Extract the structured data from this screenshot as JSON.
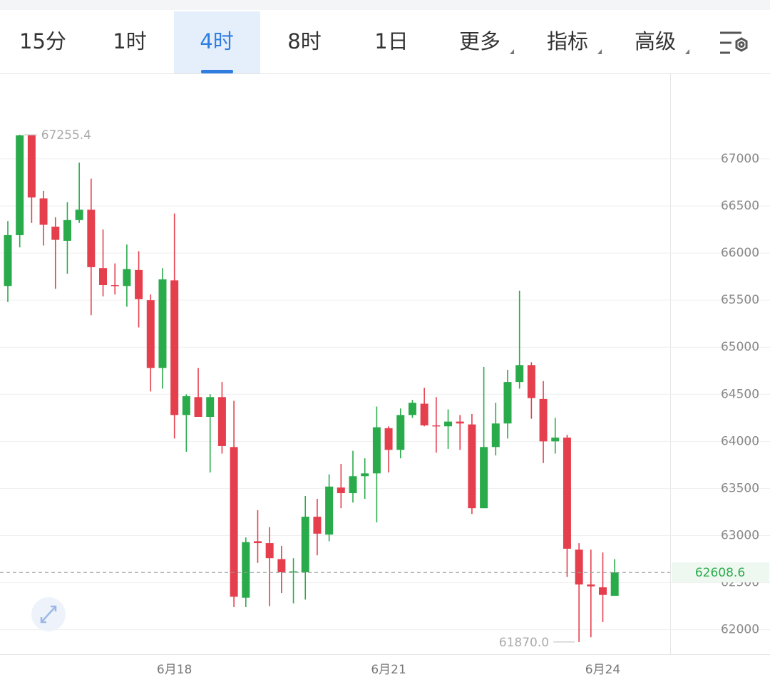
{
  "toolbar": {
    "tabs": [
      "15分",
      "1时",
      "4时",
      "8时",
      "1日",
      "更多",
      "指标",
      "高级"
    ],
    "active": 2,
    "menu_tabs": [
      5,
      6,
      7
    ]
  },
  "chart_data": {
    "type": "candlestick",
    "categories": [
      null,
      null,
      null,
      null,
      null,
      null,
      null,
      null,
      null,
      null,
      null,
      null,
      null,
      null,
      "6月18",
      null,
      null,
      null,
      null,
      null,
      null,
      null,
      null,
      null,
      null,
      null,
      null,
      null,
      null,
      null,
      null,
      null,
      "6月21",
      null,
      null,
      null,
      null,
      null,
      null,
      null,
      null,
      null,
      null,
      null,
      null,
      null,
      null,
      null,
      null,
      null,
      "6月24",
      null
    ],
    "open": [
      65650,
      66190,
      67250,
      66580,
      66280,
      66130,
      66350,
      66460,
      65840,
      65660,
      65650,
      65820,
      65500,
      64780,
      65710,
      64280,
      64470,
      64260,
      64470,
      63940,
      62340,
      62940,
      62920,
      62750,
      62610,
      62610,
      63200,
      63010,
      63510,
      63450,
      63630,
      63660,
      64140,
      63910,
      64280,
      64400,
      64170,
      64160,
      64210,
      64180,
      63290,
      63940,
      64190,
      64630,
      64810,
      64450,
      64000,
      64040,
      62850,
      62480,
      62450,
      62360
    ],
    "high": [
      66340,
      67255.4,
      67250,
      66660,
      66380,
      66540,
      66960,
      66790,
      66250,
      65890,
      66090,
      66020,
      65560,
      65840,
      66420,
      64500,
      64780,
      64500,
      64630,
      64430,
      62980,
      63270,
      63090,
      62890,
      62760,
      63420,
      63390,
      63650,
      63760,
      63900,
      63820,
      64370,
      64160,
      64350,
      64440,
      64570,
      64470,
      64340,
      64280,
      64290,
      64790,
      64410,
      64760,
      65600,
      64840,
      64640,
      64250,
      64070,
      62920,
      62850,
      62820,
      62750
    ],
    "low": [
      65480,
      66060,
      66320,
      66080,
      65620,
      65780,
      66320,
      65340,
      65540,
      65560,
      65430,
      65210,
      64530,
      64560,
      64030,
      63890,
      64260,
      63670,
      63870,
      62240,
      62240,
      62710,
      62250,
      62390,
      62280,
      62320,
      62790,
      62940,
      63290,
      63350,
      63390,
      63140,
      63670,
      63820,
      64250,
      64160,
      63880,
      63920,
      63910,
      63230,
      63290,
      63850,
      64030,
      64560,
      64240,
      63770,
      63870,
      62560,
      61870,
      61920,
      62080,
      62360
    ],
    "close": [
      66190,
      67250,
      66590,
      66300,
      66140,
      66350,
      66460,
      65850,
      65660,
      65650,
      65830,
      65510,
      64780,
      65720,
      64280,
      64480,
      64260,
      64470,
      63950,
      62350,
      62930,
      62920,
      62760,
      62610,
      62620,
      63200,
      63020,
      63520,
      63450,
      63630,
      63660,
      64150,
      63910,
      64280,
      64410,
      64170,
      64160,
      64210,
      64190,
      63290,
      63940,
      64190,
      64630,
      64810,
      64460,
      64000,
      64040,
      62860,
      62480,
      62460,
      62370,
      62608.6
    ],
    "up_color": "#2aab4b",
    "down_color": "#e53f4e",
    "ylim": [
      61740,
      67900
    ],
    "yticks": [
      62000,
      62500,
      63000,
      63500,
      64000,
      64500,
      65000,
      65500,
      66000,
      66500,
      67000
    ],
    "grid": true,
    "high_label": 67255.4,
    "low_label": {
      "value": 61870,
      "label": "61870.0"
    },
    "last_price": 62608.6
  }
}
